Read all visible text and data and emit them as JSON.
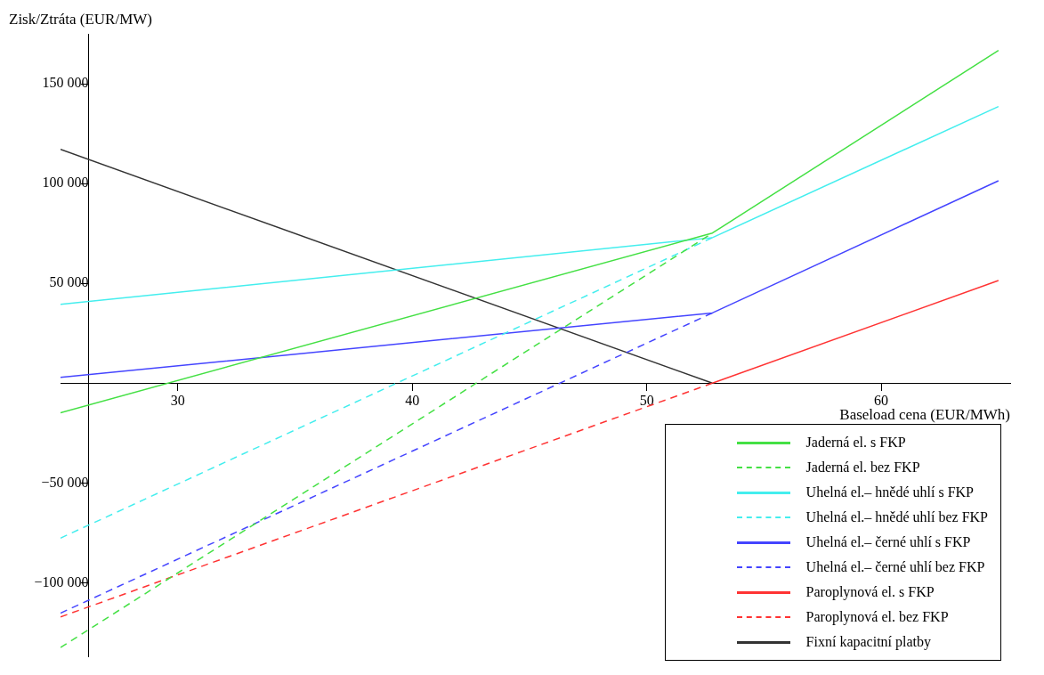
{
  "chart_data": {
    "type": "line",
    "xlabel": "Baseload cena (EUR/MWh)",
    "ylabel": "Zisk/Ztráta (EUR/MW)",
    "xlim": [
      25,
      65.5
    ],
    "ylim": [
      -137000,
      175000
    ],
    "xticks": [
      30,
      40,
      50,
      60
    ],
    "yticks": [
      {
        "value": -100000,
        "label": "−100 000"
      },
      {
        "value": -50000,
        "label": "−50 000"
      },
      {
        "value": 50000,
        "label": "50 000"
      },
      {
        "value": 100000,
        "label": "100 000"
      },
      {
        "value": 150000,
        "label": "150 000"
      }
    ],
    "legend": "bottom right",
    "grid": false,
    "marker": "none",
    "series": [
      {
        "name": "Jaderná el. s FKP",
        "color": "#44e044",
        "line_style": "solid",
        "x": [
          25,
          52.8,
          65
        ],
        "values": [
          -14800,
          75200,
          166700
        ]
      },
      {
        "name": "Jaderná el. bez FKP",
        "color": "#44e044",
        "line_style": "dashed",
        "x": [
          25,
          52.8
        ],
        "values": [
          -132400,
          75200
        ]
      },
      {
        "name": "Uhelná el.– hnědé uhlí s FKP",
        "color": "#44eeee",
        "line_style": "solid",
        "x": [
          25,
          52.8,
          65
        ],
        "values": [
          39500,
          72900,
          138600
        ]
      },
      {
        "name": "Uhelná el.– hnědé uhlí bez FKP",
        "color": "#44eeee",
        "line_style": "dashed",
        "x": [
          25,
          52.8
        ],
        "values": [
          -77600,
          72900
        ]
      },
      {
        "name": "Uhelná el.– černé uhlí s FKP",
        "color": "#4444ff",
        "line_style": "solid",
        "x": [
          25,
          52.8,
          65
        ],
        "values": [
          2900,
          35200,
          101400
        ]
      },
      {
        "name": "Uhelná el.– černé uhlí bez FKP",
        "color": "#4444ff",
        "line_style": "dashed",
        "x": [
          25,
          52.8
        ],
        "values": [
          -115200,
          35200
        ]
      },
      {
        "name": "Paroplynová el. s FKP",
        "color": "#ff3333",
        "line_style": "solid",
        "x": [
          52.8,
          65
        ],
        "values": [
          0,
          51400
        ]
      },
      {
        "name": "Paroplynová el. bez FKP",
        "color": "#ff3333",
        "line_style": "dashed",
        "x": [
          25,
          52.8
        ],
        "values": [
          -117100,
          0
        ]
      },
      {
        "name": "Fixní kapacitní platby",
        "color": "#333333",
        "line_style": "solid",
        "x": [
          25,
          52.8
        ],
        "values": [
          117100,
          0
        ]
      }
    ]
  }
}
